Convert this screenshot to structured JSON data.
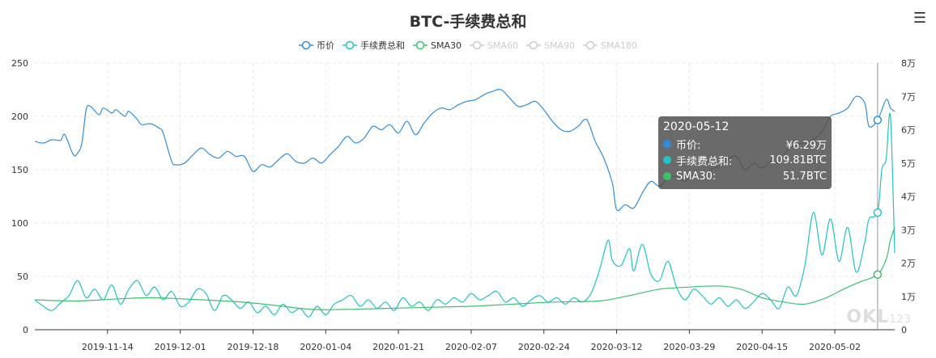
{
  "title": "BTC-手续费总和",
  "menu_icon": "☰",
  "legend": [
    {
      "name": "币价",
      "color": "#2f8fdb",
      "active": true
    },
    {
      "name": "手续费总和",
      "color": "#22c3c3",
      "active": true
    },
    {
      "name": "SMA30",
      "color": "#3cc069",
      "active": true
    },
    {
      "name": "SMA60",
      "color": "#cccccc",
      "active": false
    },
    {
      "name": "SMA90",
      "color": "#cccccc",
      "active": false
    },
    {
      "name": "SMA180",
      "color": "#cccccc",
      "active": false
    }
  ],
  "tooltip": {
    "date": "2020-05-12",
    "rows": [
      {
        "label": "币价:",
        "value": "¥6.29万",
        "color": "#2f8fdb"
      },
      {
        "label": "手续费总和:",
        "value": "109.81BTC",
        "color": "#22c3c3"
      },
      {
        "label": "SMA30:",
        "value": "51.7BTC",
        "color": "#3cc069"
      }
    ]
  },
  "watermark": {
    "main": "OKL",
    "sub": "123"
  },
  "chart_data": {
    "type": "line",
    "x_start": "2019-10-28",
    "x_end": "2020-05-16",
    "x_ticks": [
      "2019-11-14",
      "2019-12-01",
      "2019-12-18",
      "2020-01-04",
      "2020-01-21",
      "2020-02-07",
      "2020-02-24",
      "2020-03-12",
      "2020-03-29",
      "2020-04-15",
      "2020-05-02"
    ],
    "y_left": {
      "min": 0,
      "max": 250,
      "ticks": [
        "0",
        "50",
        "100",
        "150",
        "200",
        "250"
      ]
    },
    "y_right": {
      "min": 0,
      "max": 80000,
      "ticks": [
        "0",
        "1万",
        "2万",
        "3万",
        "4万",
        "5万",
        "6万",
        "7万",
        "8万"
      ]
    },
    "highlight_date": "2020-05-12",
    "series": [
      {
        "name": "币价",
        "axis": "right",
        "color": "#2f8fdb",
        "points": [
          [
            "2019-10-28",
            56500
          ],
          [
            "2019-10-30",
            56000
          ],
          [
            "2019-11-01",
            57000
          ],
          [
            "2019-11-03",
            56800
          ],
          [
            "2019-11-04",
            58500
          ],
          [
            "2019-11-06",
            52500
          ],
          [
            "2019-11-07",
            53000
          ],
          [
            "2019-11-08",
            56000
          ],
          [
            "2019-11-09",
            66000
          ],
          [
            "2019-11-10",
            67000
          ],
          [
            "2019-11-12",
            64500
          ],
          [
            "2019-11-13",
            66500
          ],
          [
            "2019-11-15",
            65000
          ],
          [
            "2019-11-16",
            66000
          ],
          [
            "2019-11-18",
            64000
          ],
          [
            "2019-11-19",
            65500
          ],
          [
            "2019-11-21",
            63000
          ],
          [
            "2019-11-22",
            61500
          ],
          [
            "2019-11-24",
            61800
          ],
          [
            "2019-11-26",
            60500
          ],
          [
            "2019-11-27",
            59000
          ],
          [
            "2019-11-29",
            50500
          ],
          [
            "2019-11-30",
            49500
          ],
          [
            "2019-12-02",
            50000
          ],
          [
            "2019-12-04",
            52500
          ],
          [
            "2019-12-06",
            54500
          ],
          [
            "2019-12-08",
            52500
          ],
          [
            "2019-12-10",
            51500
          ],
          [
            "2019-12-12",
            53500
          ],
          [
            "2019-12-14",
            52000
          ],
          [
            "2019-12-16",
            52000
          ],
          [
            "2019-12-18",
            47500
          ],
          [
            "2019-12-20",
            49500
          ],
          [
            "2019-12-22",
            48800
          ],
          [
            "2019-12-24",
            51000
          ],
          [
            "2019-12-26",
            52800
          ],
          [
            "2019-12-28",
            50500
          ],
          [
            "2019-12-30",
            50000
          ],
          [
            "2020-01-01",
            51500
          ],
          [
            "2020-01-03",
            50000
          ],
          [
            "2020-01-05",
            52500
          ],
          [
            "2020-01-07",
            55000
          ],
          [
            "2020-01-09",
            58000
          ],
          [
            "2020-01-11",
            56000
          ],
          [
            "2020-01-13",
            57500
          ],
          [
            "2020-01-15",
            61000
          ],
          [
            "2020-01-17",
            60000
          ],
          [
            "2020-01-19",
            61500
          ],
          [
            "2020-01-21",
            59000
          ],
          [
            "2020-01-23",
            62500
          ],
          [
            "2020-01-25",
            58500
          ],
          [
            "2020-01-27",
            62000
          ],
          [
            "2020-01-29",
            65000
          ],
          [
            "2020-01-31",
            66500
          ],
          [
            "2020-02-02",
            66000
          ],
          [
            "2020-02-04",
            67500
          ],
          [
            "2020-02-06",
            68500
          ],
          [
            "2020-02-08",
            69000
          ],
          [
            "2020-02-10",
            70500
          ],
          [
            "2020-02-12",
            71500
          ],
          [
            "2020-02-14",
            72000
          ],
          [
            "2020-02-16",
            69500
          ],
          [
            "2020-02-18",
            67000
          ],
          [
            "2020-02-20",
            67500
          ],
          [
            "2020-02-22",
            68500
          ],
          [
            "2020-02-24",
            66000
          ],
          [
            "2020-02-26",
            62500
          ],
          [
            "2020-02-28",
            60000
          ],
          [
            "2020-03-01",
            59500
          ],
          [
            "2020-03-03",
            61000
          ],
          [
            "2020-03-05",
            63000
          ],
          [
            "2020-03-07",
            56500
          ],
          [
            "2020-03-09",
            51500
          ],
          [
            "2020-03-11",
            44000
          ],
          [
            "2020-03-12",
            36000
          ],
          [
            "2020-03-14",
            37500
          ],
          [
            "2020-03-16",
            36500
          ],
          [
            "2020-03-18",
            41000
          ],
          [
            "2020-03-20",
            44500
          ],
          [
            "2020-03-22",
            43000
          ],
          [
            "2020-03-24",
            45500
          ],
          [
            "2020-03-26",
            46000
          ],
          [
            "2020-03-28",
            44500
          ],
          [
            "2020-03-30",
            46500
          ],
          [
            "2020-04-01",
            45500
          ],
          [
            "2020-04-03",
            48000
          ],
          [
            "2020-04-05",
            49000
          ],
          [
            "2020-04-07",
            51000
          ],
          [
            "2020-04-09",
            52000
          ],
          [
            "2020-04-11",
            48000
          ],
          [
            "2020-04-13",
            50000
          ],
          [
            "2020-04-15",
            48500
          ],
          [
            "2020-04-17",
            50500
          ],
          [
            "2020-04-19",
            50000
          ],
          [
            "2020-04-21",
            54000
          ],
          [
            "2020-04-23",
            55500
          ],
          [
            "2020-04-25",
            56000
          ],
          [
            "2020-04-27",
            57000
          ],
          [
            "2020-04-29",
            59500
          ],
          [
            "2020-05-01",
            64000
          ],
          [
            "2020-05-03",
            65000
          ],
          [
            "2020-05-05",
            66500
          ],
          [
            "2020-05-07",
            70000
          ],
          [
            "2020-05-09",
            68000
          ],
          [
            "2020-05-10",
            61000
          ],
          [
            "2020-05-12",
            62900
          ],
          [
            "2020-05-14",
            69000
          ],
          [
            "2020-05-15",
            66500
          ],
          [
            "2020-05-16",
            65500
          ]
        ]
      },
      {
        "name": "手续费总和",
        "axis": "left",
        "color": "#22c3c3",
        "points": [
          [
            "2019-10-28",
            28
          ],
          [
            "2019-10-30",
            22
          ],
          [
            "2019-11-01",
            18
          ],
          [
            "2019-11-03",
            25
          ],
          [
            "2019-11-05",
            32
          ],
          [
            "2019-11-07",
            46
          ],
          [
            "2019-11-09",
            30
          ],
          [
            "2019-11-11",
            38
          ],
          [
            "2019-11-13",
            28
          ],
          [
            "2019-11-15",
            42
          ],
          [
            "2019-11-17",
            24
          ],
          [
            "2019-11-19",
            38
          ],
          [
            "2019-11-21",
            46
          ],
          [
            "2019-11-23",
            32
          ],
          [
            "2019-11-25",
            40
          ],
          [
            "2019-11-27",
            28
          ],
          [
            "2019-11-29",
            36
          ],
          [
            "2019-12-01",
            22
          ],
          [
            "2019-12-03",
            26
          ],
          [
            "2019-12-05",
            38
          ],
          [
            "2019-12-07",
            34
          ],
          [
            "2019-12-09",
            18
          ],
          [
            "2019-12-11",
            32
          ],
          [
            "2019-12-13",
            28
          ],
          [
            "2019-12-15",
            20
          ],
          [
            "2019-12-17",
            26
          ],
          [
            "2019-12-19",
            16
          ],
          [
            "2019-12-21",
            22
          ],
          [
            "2019-12-23",
            14
          ],
          [
            "2019-12-25",
            24
          ],
          [
            "2019-12-27",
            16
          ],
          [
            "2019-12-29",
            20
          ],
          [
            "2019-12-31",
            12
          ],
          [
            "2020-01-02",
            22
          ],
          [
            "2020-01-04",
            14
          ],
          [
            "2020-01-06",
            24
          ],
          [
            "2020-01-08",
            28
          ],
          [
            "2020-01-10",
            32
          ],
          [
            "2020-01-12",
            22
          ],
          [
            "2020-01-14",
            28
          ],
          [
            "2020-01-16",
            20
          ],
          [
            "2020-01-18",
            26
          ],
          [
            "2020-01-20",
            18
          ],
          [
            "2020-01-22",
            30
          ],
          [
            "2020-01-24",
            22
          ],
          [
            "2020-01-26",
            26
          ],
          [
            "2020-01-28",
            18
          ],
          [
            "2020-01-30",
            28
          ],
          [
            "2020-02-01",
            24
          ],
          [
            "2020-02-03",
            30
          ],
          [
            "2020-02-05",
            26
          ],
          [
            "2020-02-07",
            34
          ],
          [
            "2020-02-09",
            28
          ],
          [
            "2020-02-11",
            32
          ],
          [
            "2020-02-13",
            36
          ],
          [
            "2020-02-15",
            26
          ],
          [
            "2020-02-17",
            30
          ],
          [
            "2020-02-19",
            22
          ],
          [
            "2020-02-21",
            28
          ],
          [
            "2020-02-23",
            32
          ],
          [
            "2020-02-25",
            26
          ],
          [
            "2020-02-27",
            30
          ],
          [
            "2020-02-29",
            24
          ],
          [
            "2020-03-02",
            30
          ],
          [
            "2020-03-04",
            26
          ],
          [
            "2020-03-06",
            34
          ],
          [
            "2020-03-08",
            56
          ],
          [
            "2020-03-10",
            84
          ],
          [
            "2020-03-11",
            65
          ],
          [
            "2020-03-13",
            60
          ],
          [
            "2020-03-15",
            76
          ],
          [
            "2020-03-16",
            55
          ],
          [
            "2020-03-18",
            80
          ],
          [
            "2020-03-20",
            52
          ],
          [
            "2020-03-22",
            46
          ],
          [
            "2020-03-24",
            64
          ],
          [
            "2020-03-26",
            40
          ],
          [
            "2020-03-28",
            28
          ],
          [
            "2020-03-30",
            38
          ],
          [
            "2020-04-01",
            32
          ],
          [
            "2020-04-03",
            24
          ],
          [
            "2020-04-05",
            30
          ],
          [
            "2020-04-07",
            22
          ],
          [
            "2020-04-09",
            28
          ],
          [
            "2020-04-11",
            20
          ],
          [
            "2020-04-13",
            26
          ],
          [
            "2020-04-15",
            34
          ],
          [
            "2020-04-17",
            28
          ],
          [
            "2020-04-19",
            20
          ],
          [
            "2020-04-21",
            40
          ],
          [
            "2020-04-23",
            32
          ],
          [
            "2020-04-25",
            60
          ],
          [
            "2020-04-27",
            110
          ],
          [
            "2020-04-29",
            70
          ],
          [
            "2020-05-01",
            104
          ],
          [
            "2020-05-03",
            64
          ],
          [
            "2020-05-05",
            96
          ],
          [
            "2020-05-07",
            54
          ],
          [
            "2020-05-09",
            82
          ],
          [
            "2020-05-10",
            104
          ],
          [
            "2020-05-12",
            109.81
          ],
          [
            "2020-05-13",
            150
          ],
          [
            "2020-05-14",
            160
          ],
          [
            "2020-05-15",
            200
          ],
          [
            "2020-05-16",
            72
          ]
        ]
      },
      {
        "name": "SMA30",
        "axis": "left",
        "color": "#3cc069",
        "points": [
          [
            "2019-10-28",
            28
          ],
          [
            "2019-11-07",
            27
          ],
          [
            "2019-11-17",
            29
          ],
          [
            "2019-11-24",
            30
          ],
          [
            "2019-12-01",
            29
          ],
          [
            "2019-12-11",
            27
          ],
          [
            "2019-12-18",
            25
          ],
          [
            "2019-12-25",
            22
          ],
          [
            "2020-01-01",
            19
          ],
          [
            "2020-01-08",
            19
          ],
          [
            "2020-01-18",
            20
          ],
          [
            "2020-01-28",
            21
          ],
          [
            "2020-02-07",
            22
          ],
          [
            "2020-02-17",
            24
          ],
          [
            "2020-02-27",
            26
          ],
          [
            "2020-03-08",
            27
          ],
          [
            "2020-03-15",
            32
          ],
          [
            "2020-03-22",
            38
          ],
          [
            "2020-03-29",
            40
          ],
          [
            "2020-04-05",
            41
          ],
          [
            "2020-04-10",
            38
          ],
          [
            "2020-04-15",
            30
          ],
          [
            "2020-04-20",
            26
          ],
          [
            "2020-04-25",
            24
          ],
          [
            "2020-04-30",
            30
          ],
          [
            "2020-05-04",
            38
          ],
          [
            "2020-05-08",
            45
          ],
          [
            "2020-05-12",
            51.7
          ],
          [
            "2020-05-14",
            66
          ],
          [
            "2020-05-15",
            84
          ],
          [
            "2020-05-16",
            96
          ]
        ]
      }
    ]
  }
}
